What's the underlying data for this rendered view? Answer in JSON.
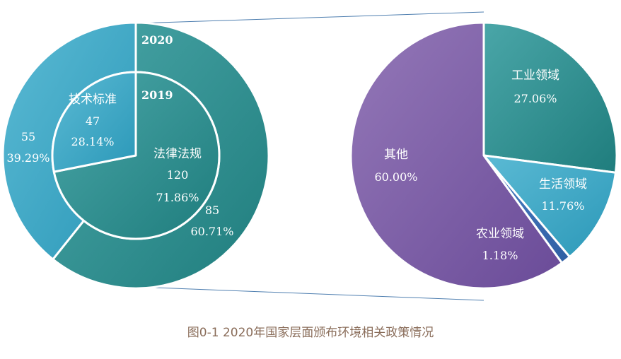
{
  "caption": "图0-1 2020年国家层面颁布环境相关政策情况",
  "chart_data": [
    {
      "type": "pie",
      "variant": "nested-donut",
      "rings": [
        {
          "label": "2020",
          "slices": [
            {
              "name": "",
              "value": 85,
              "percent_label": "60.71%",
              "color": "#2e8c8c"
            },
            {
              "name": "",
              "value": 55,
              "percent_label": "39.29%",
              "color": "#34a3bd"
            }
          ]
        },
        {
          "label": "2019",
          "slices": [
            {
              "name": "法律法规",
              "value": 120,
              "percent_label": "71.86%",
              "color": "#2e8c8c"
            },
            {
              "name": "技术标准",
              "value": 47,
              "percent_label": "28.14%",
              "color": "#34a3bd"
            }
          ]
        }
      ]
    },
    {
      "type": "pie",
      "slices": [
        {
          "name": "工业领域",
          "percent": 27.06,
          "percent_label": "27.06%",
          "color": "#2e8c8c"
        },
        {
          "name": "生活领域",
          "percent": 11.76,
          "percent_label": "11.76%",
          "color": "#34a3bd"
        },
        {
          "name": "农业领域",
          "percent": 1.18,
          "percent_label": "1.18%",
          "color": "#3a6fb5"
        },
        {
          "name": "其他",
          "percent": 60.0,
          "percent_label": "60.00%",
          "color": "#7a5aa3"
        }
      ]
    }
  ]
}
